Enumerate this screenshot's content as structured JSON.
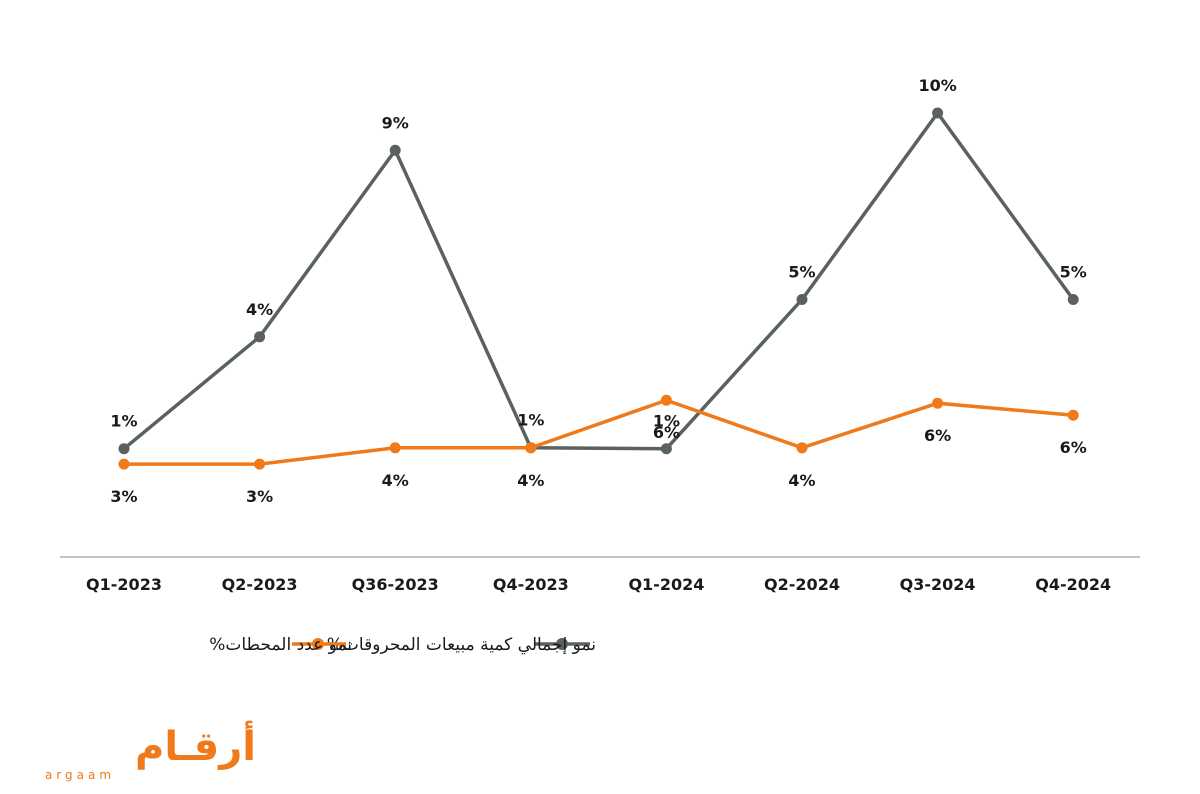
{
  "chart_data": {
    "type": "line",
    "categories": [
      "Q1-2023",
      "Q2-2023",
      "Q36-2023",
      "Q4-2023",
      "Q1-2024",
      "Q2-2024",
      "Q3-2024",
      "Q4-2024"
    ],
    "series": [
      {
        "name": "نمو إجمالي كمية مبيعات المحروقات%",
        "color": "#5a625f",
        "values": [
          1,
          4,
          9,
          1,
          1,
          5,
          10,
          5
        ],
        "labels": [
          "1%",
          "4%",
          "9%",
          "1%",
          "1%",
          "5%",
          "10%",
          "5%"
        ]
      },
      {
        "name": "نمو عدد المحطات%",
        "color": "#f07a1a",
        "values": [
          3,
          3,
          4,
          4,
          6,
          4,
          6,
          6
        ],
        "labels": [
          "3%",
          "3%",
          "4%",
          "4%",
          "6%",
          "4%",
          "6%",
          "6%"
        ]
      }
    ],
    "grid": false,
    "legend_position": "bottom"
  },
  "logo": {
    "text_ar": "أرقـام",
    "text_en": "argaam",
    "color": "#f07a1a"
  }
}
